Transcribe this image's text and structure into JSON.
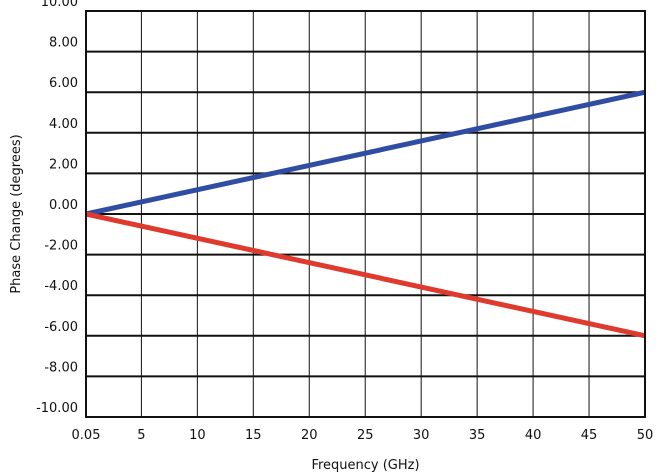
{
  "chart_data": {
    "type": "line",
    "xlabel": "Frequency (GHz)",
    "ylabel": "Phase Change (degrees)",
    "xlim": [
      0.05,
      50
    ],
    "ylim": [
      -10,
      10
    ],
    "x_ticks": [
      {
        "value": 0.05,
        "label": "0.05"
      },
      {
        "value": 5,
        "label": "5"
      },
      {
        "value": 10,
        "label": "10"
      },
      {
        "value": 15,
        "label": "15"
      },
      {
        "value": 20,
        "label": "20"
      },
      {
        "value": 25,
        "label": "25"
      },
      {
        "value": 30,
        "label": "30"
      },
      {
        "value": 35,
        "label": "35"
      },
      {
        "value": 40,
        "label": "40"
      },
      {
        "value": 45,
        "label": "45"
      },
      {
        "value": 50,
        "label": "50"
      }
    ],
    "y_ticks": [
      {
        "value": 10,
        "label": "10.00"
      },
      {
        "value": 8,
        "label": "8.00"
      },
      {
        "value": 6,
        "label": "6.00"
      },
      {
        "value": 4,
        "label": "4.00"
      },
      {
        "value": 2,
        "label": "2.00"
      },
      {
        "value": 0,
        "label": "0.00"
      },
      {
        "value": -2,
        "label": "-2.00"
      },
      {
        "value": -4,
        "label": "-4.00"
      },
      {
        "value": -6,
        "label": "-6.00"
      },
      {
        "value": -8,
        "label": "-8.00"
      },
      {
        "value": -10,
        "label": "-10.00"
      }
    ],
    "grid": true,
    "series": [
      {
        "color": "#2f4ea3",
        "points": [
          [
            0.05,
            0
          ],
          [
            50,
            6
          ]
        ]
      },
      {
        "color": "#e03a2e",
        "points": [
          [
            0.05,
            0
          ],
          [
            50,
            -6
          ]
        ]
      }
    ]
  }
}
